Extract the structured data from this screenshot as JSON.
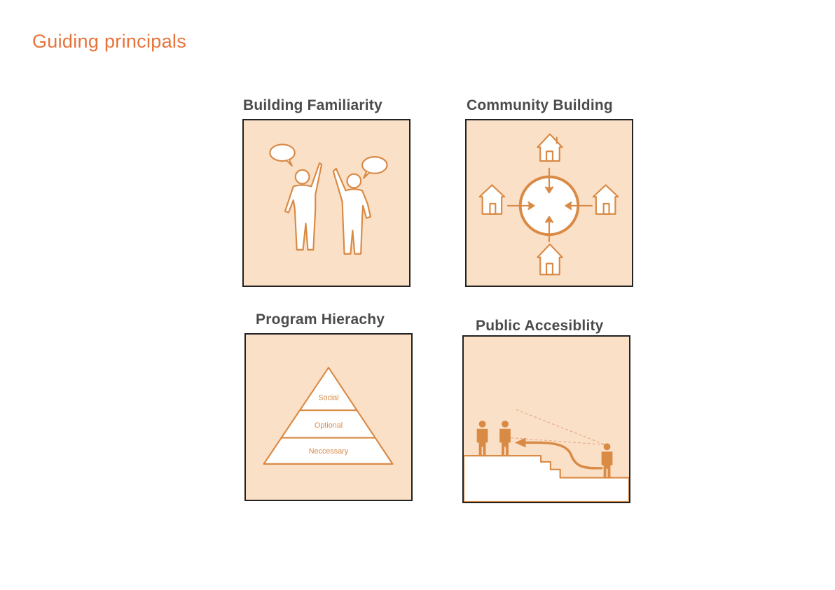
{
  "page": {
    "title": "Guiding principals"
  },
  "cards": [
    {
      "title": "Building Familiarity"
    },
    {
      "title": "Community Building"
    },
    {
      "title": "Program Hierachy",
      "pyramid_levels": [
        "Social",
        "Optional",
        "Neccessary"
      ]
    },
    {
      "title": "Public Accesiblity"
    }
  ],
  "colors": {
    "accent": "#e8733a",
    "panel_fill": "#fbe0c8",
    "illustration": "#d98a45",
    "title_text": "#4b4b4b",
    "border": "#222222"
  }
}
